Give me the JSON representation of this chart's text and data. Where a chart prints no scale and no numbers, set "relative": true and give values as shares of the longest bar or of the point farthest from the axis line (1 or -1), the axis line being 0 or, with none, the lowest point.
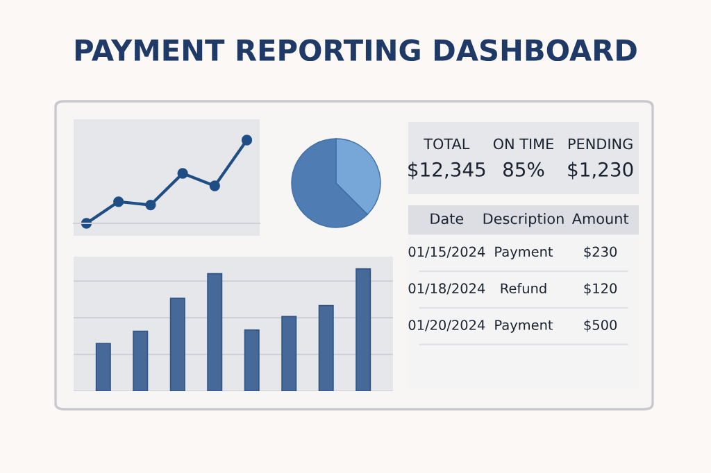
{
  "chart_data": [
    {
      "type": "line",
      "title": "PAYMENT REPORTING DASHBOARD",
      "relative": true,
      "categories": [
        null,
        null,
        null,
        null,
        null,
        null
      ],
      "series": [
        {
          "color": "#1f4e85",
          "values": [
            0,
            0.26,
            0.22,
            0.6,
            0.45,
            1
          ]
        }
      ],
      "marker": "circle"
    },
    {
      "type": "pie",
      "categories": [
        null,
        null
      ],
      "values": [
        37.5,
        62.5
      ],
      "colors": [
        "#76a7d8",
        "#4f7db3"
      ]
    },
    {
      "type": "bar",
      "relative": true,
      "categories": [
        null,
        null,
        null,
        null,
        null,
        null,
        null,
        null
      ],
      "values": [
        0.39,
        0.49,
        0.76,
        0.96,
        0.5,
        0.61,
        0.7,
        1
      ],
      "color": "#46699a",
      "grid": "y"
    },
    {
      "type": "other",
      "categories": [
        "TOTAL",
        "ON TIME",
        "PENDING"
      ],
      "annotations": [
        "$12,345",
        "85%",
        "$1,230"
      ]
    },
    {
      "type": "other",
      "categories": [
        "Date",
        "Description",
        "Amount"
      ],
      "annotations": [
        "01/15/2024",
        "Payment",
        "$230",
        "01/18/2024",
        "Refund",
        "$120",
        "01/20/2024",
        "Payment",
        "$500"
      ]
    }
  ]
}
